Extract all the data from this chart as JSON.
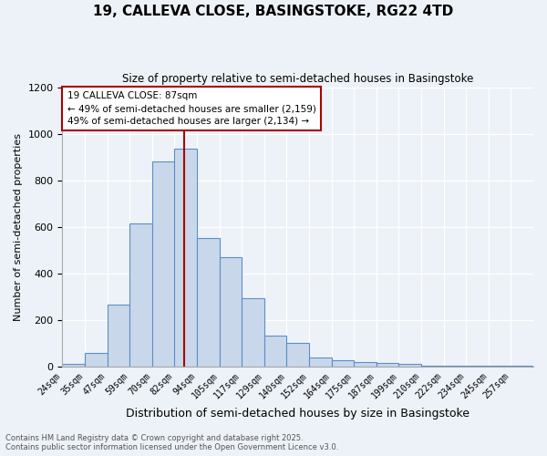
{
  "title1": "19, CALLEVA CLOSE, BASINGSTOKE, RG22 4TD",
  "title2": "Size of property relative to semi-detached houses in Basingstoke",
  "xlabel": "Distribution of semi-detached houses by size in Basingstoke",
  "ylabel": "Number of semi-detached properties",
  "categories": [
    "24sqm",
    "35sqm",
    "47sqm",
    "59sqm",
    "70sqm",
    "82sqm",
    "94sqm",
    "105sqm",
    "117sqm",
    "129sqm",
    "140sqm",
    "152sqm",
    "164sqm",
    "175sqm",
    "187sqm",
    "199sqm",
    "210sqm",
    "222sqm",
    "234sqm",
    "245sqm",
    "257sqm"
  ],
  "bar_heights": [
    10,
    57,
    265,
    615,
    880,
    935,
    553,
    470,
    293,
    133,
    100,
    40,
    27,
    20,
    13,
    10,
    5,
    5,
    3,
    3,
    3
  ],
  "bar_color": "#c8d8ea",
  "bar_edge_color": "#5b8ec9",
  "background_color": "#edf2f8",
  "grid_color": "#ffffff",
  "property_sqm": 87,
  "property_label": "19 CALLEVA CLOSE: 87sqm",
  "smaller_pct": 49,
  "smaller_count": 2159,
  "larger_pct": 49,
  "larger_count": 2134,
  "vline_color": "#aa0000",
  "ylim": [
    0,
    1200
  ],
  "yticks": [
    0,
    200,
    400,
    600,
    800,
    1000,
    1200
  ],
  "footnote1": "Contains HM Land Registry data © Crown copyright and database right 2025.",
  "footnote2": "Contains public sector information licensed under the Open Government Licence v3.0."
}
